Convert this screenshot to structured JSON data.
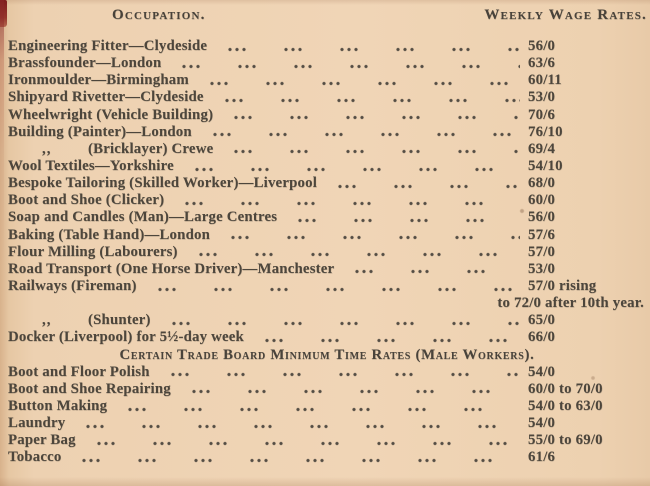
{
  "colors": {
    "paper": "#eed2b2",
    "ink": "#4d463c",
    "binding_red": "#8a2323"
  },
  "header": {
    "occupation": "Occupation.",
    "rates": "Weekly Wage Rates."
  },
  "rows": [
    {
      "name": "Engineering Fitter—Clydeside",
      "rate": "56/0"
    },
    {
      "name": "Brassfounder—London",
      "rate": "63/6"
    },
    {
      "name": "Ironmoulder—Birmingham",
      "rate": "60/11"
    },
    {
      "name": "Shipyard Rivetter—Clydeside",
      "rate": "53/0"
    },
    {
      "name": "Wheelwright (Vehicle Building)",
      "rate": "70/6"
    },
    {
      "name": "Building (Painter)—London",
      "rate": "76/10"
    },
    {
      "ditto": ",,",
      "name": "(Bricklayer) Crewe",
      "rate": "69/4"
    },
    {
      "name": "Wool Textiles—Yorkshire",
      "rate": "54/10"
    },
    {
      "name": "Bespoke Tailoring (Skilled Worker)—Liverpool",
      "rate": "68/0"
    },
    {
      "name": "Boot and Shoe (Clicker)",
      "rate": "60/0"
    },
    {
      "name": "Soap and Candles (Man)—Large Centres",
      "rate": "56/0"
    },
    {
      "name": "Baking (Table Hand)—London",
      "rate": "57/6"
    },
    {
      "name": "Flour Milling (Labourers)",
      "rate": "57/0"
    },
    {
      "name": "Road Transport (One Horse Driver)—Manchester",
      "rate": "53/0"
    },
    {
      "name": "Railways (Fireman)",
      "rate": "57/0 rising"
    },
    {
      "continuation": "to 72/0 after 10th year."
    },
    {
      "ditto": ",,",
      "name": "(Shunter)",
      "rate": "65/0"
    },
    {
      "name": "Docker (Liverpool) for 5½-day week",
      "rate": "66/0"
    },
    {
      "section": "Certain Trade Board Minimum Time Rates (Male Workers)."
    },
    {
      "name": "Boot and Floor Polish",
      "rate": "54/0"
    },
    {
      "name": "Boot and Shoe Repairing",
      "rate": "60/0 to 70/0"
    },
    {
      "name": "Button Making",
      "rate": "54/0 to 63/0"
    },
    {
      "name": "Laundry",
      "rate": "54/0"
    },
    {
      "name": "Paper Bag",
      "rate": "55/0 to 69/0"
    },
    {
      "name": "Tobacco",
      "rate": "61/6"
    }
  ]
}
